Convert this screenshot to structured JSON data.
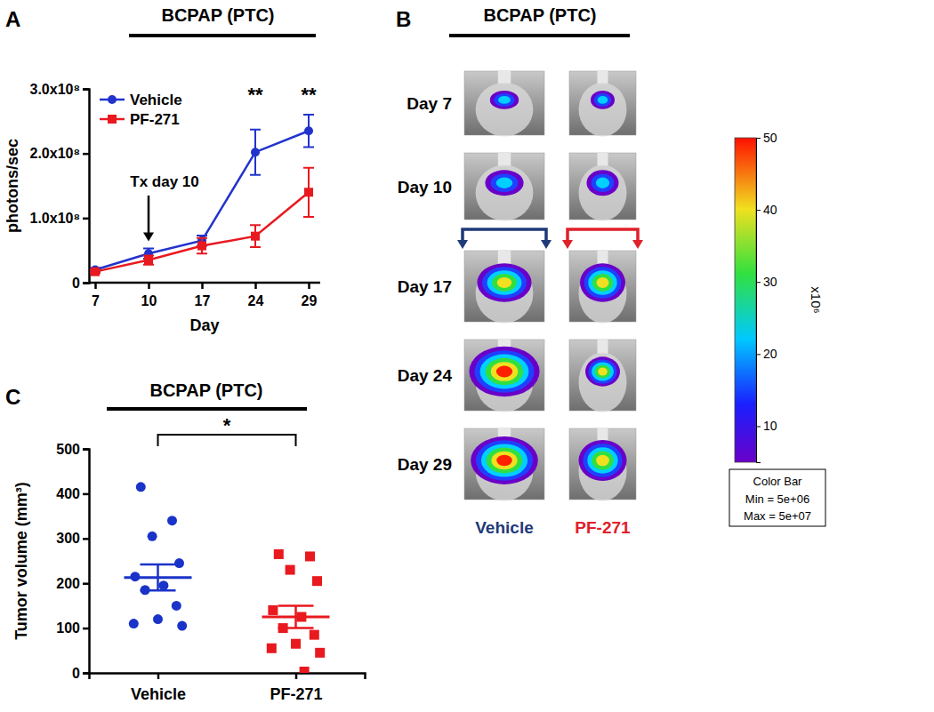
{
  "chart_data": [
    {
      "type": "line",
      "panel": "A",
      "title": "BCPAP (PTC)",
      "xlabel": "Day",
      "ylabel": "photons/sec",
      "categories": [
        "7",
        "10",
        "17",
        "24",
        "29"
      ],
      "series": [
        {
          "name": "Vehicle",
          "color": "#2233cc",
          "marker": "circle",
          "values": [
            20000000,
            45000000,
            65000000,
            202000000,
            235000000
          ],
          "errors": [
            3000000,
            8000000,
            8000000,
            35000000,
            25000000
          ]
        },
        {
          "name": "PF-271",
          "color": "#e8191f",
          "marker": "square",
          "values": [
            17000000,
            35000000,
            57000000,
            72000000,
            140000000
          ],
          "errors": [
            2000000,
            7000000,
            12000000,
            17000000,
            38000000
          ]
        }
      ],
      "ylim": [
        0,
        300000000
      ],
      "yticks": [
        0,
        {
          "value": 100000000,
          "label": "1.0x10⁸"
        },
        {
          "value": 200000000,
          "label": "2.0x10⁸"
        },
        {
          "value": 300000000,
          "label": "3.0x10⁸"
        }
      ],
      "legend": "upper left",
      "treatment_marker": {
        "text": "Tx day 10",
        "category": "10"
      },
      "annotations": [
        {
          "text": "**",
          "category": "24"
        },
        {
          "text": "**",
          "category": "29"
        }
      ]
    },
    {
      "type": "dot",
      "panel": "C",
      "title": "BCPAP (PTC)",
      "ylabel": "Tumor volume  (mm³)",
      "series": [
        {
          "name": "Vehicle",
          "color": "#1a33c8",
          "marker": "circle",
          "values": [
            415,
            340,
            305,
            245,
            215,
            195,
            185,
            150,
            120,
            110,
            105
          ],
          "mean": 213,
          "sem": 29
        },
        {
          "name": "PF-271",
          "color": "#e8191f",
          "marker": "square",
          "values": [
            265,
            260,
            230,
            205,
            140,
            125,
            100,
            85,
            65,
            55,
            45,
            3
          ],
          "mean": 125,
          "sem": 25
        }
      ],
      "ylim": [
        0,
        500
      ],
      "yticks": [
        0,
        100,
        200,
        300,
        400,
        500
      ],
      "annotations": [
        {
          "text": "*",
          "between": [
            0,
            1
          ]
        }
      ]
    }
  ],
  "image_panel": {
    "panel": "B",
    "title": "BCPAP (PTC)",
    "rows": [
      "Day 7",
      "Day 10",
      "Day 17",
      "Day 24",
      "Day 29"
    ],
    "columns": [
      {
        "label": "Vehicle",
        "color": "#1f3a78"
      },
      {
        "label": "PF-271",
        "color": "#e0202a"
      }
    ],
    "color_bar": {
      "range": [
        5,
        50
      ],
      "ticks": [
        10,
        20,
        30,
        40,
        50
      ],
      "label": "x10⁶",
      "title": "Color Bar",
      "min_label": "Min = 5e+06",
      "max_label": "Max = 5e+07"
    }
  }
}
